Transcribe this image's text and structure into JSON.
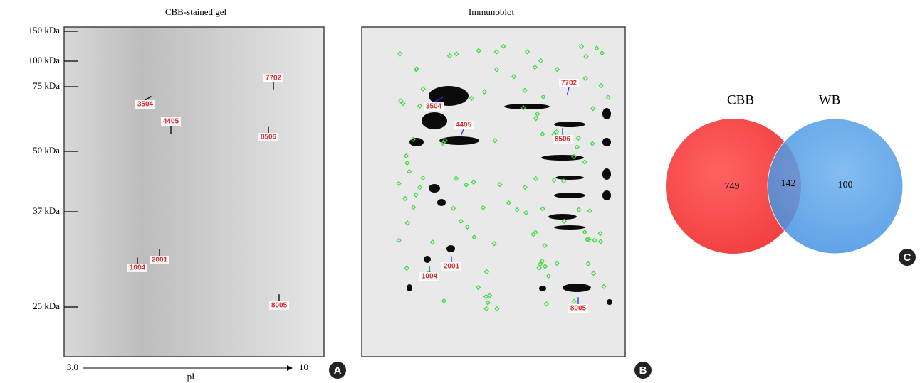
{
  "panel_a": {
    "title": "CBB-stained gel",
    "mw_labels": [
      "150 kDa",
      "100 kDa",
      "75 kDa",
      "50 kDa",
      "37 kDa",
      "25 kDa"
    ],
    "spot_labels": [
      "7702",
      "3504",
      "4405",
      "8506",
      "1004",
      "2001",
      "8005"
    ],
    "x_axis": {
      "start": "3.0",
      "end": "10",
      "label": "pI"
    },
    "letter": "A"
  },
  "panel_b": {
    "title": "Immunoblot",
    "spot_labels": [
      "7702",
      "3504",
      "4405",
      "8506",
      "1004",
      "2001",
      "8005"
    ],
    "letter": "B"
  },
  "panel_c": {
    "sets": [
      "CBB",
      "WB"
    ],
    "counts": [
      "749",
      "142",
      "100"
    ],
    "letter": "C"
  }
}
